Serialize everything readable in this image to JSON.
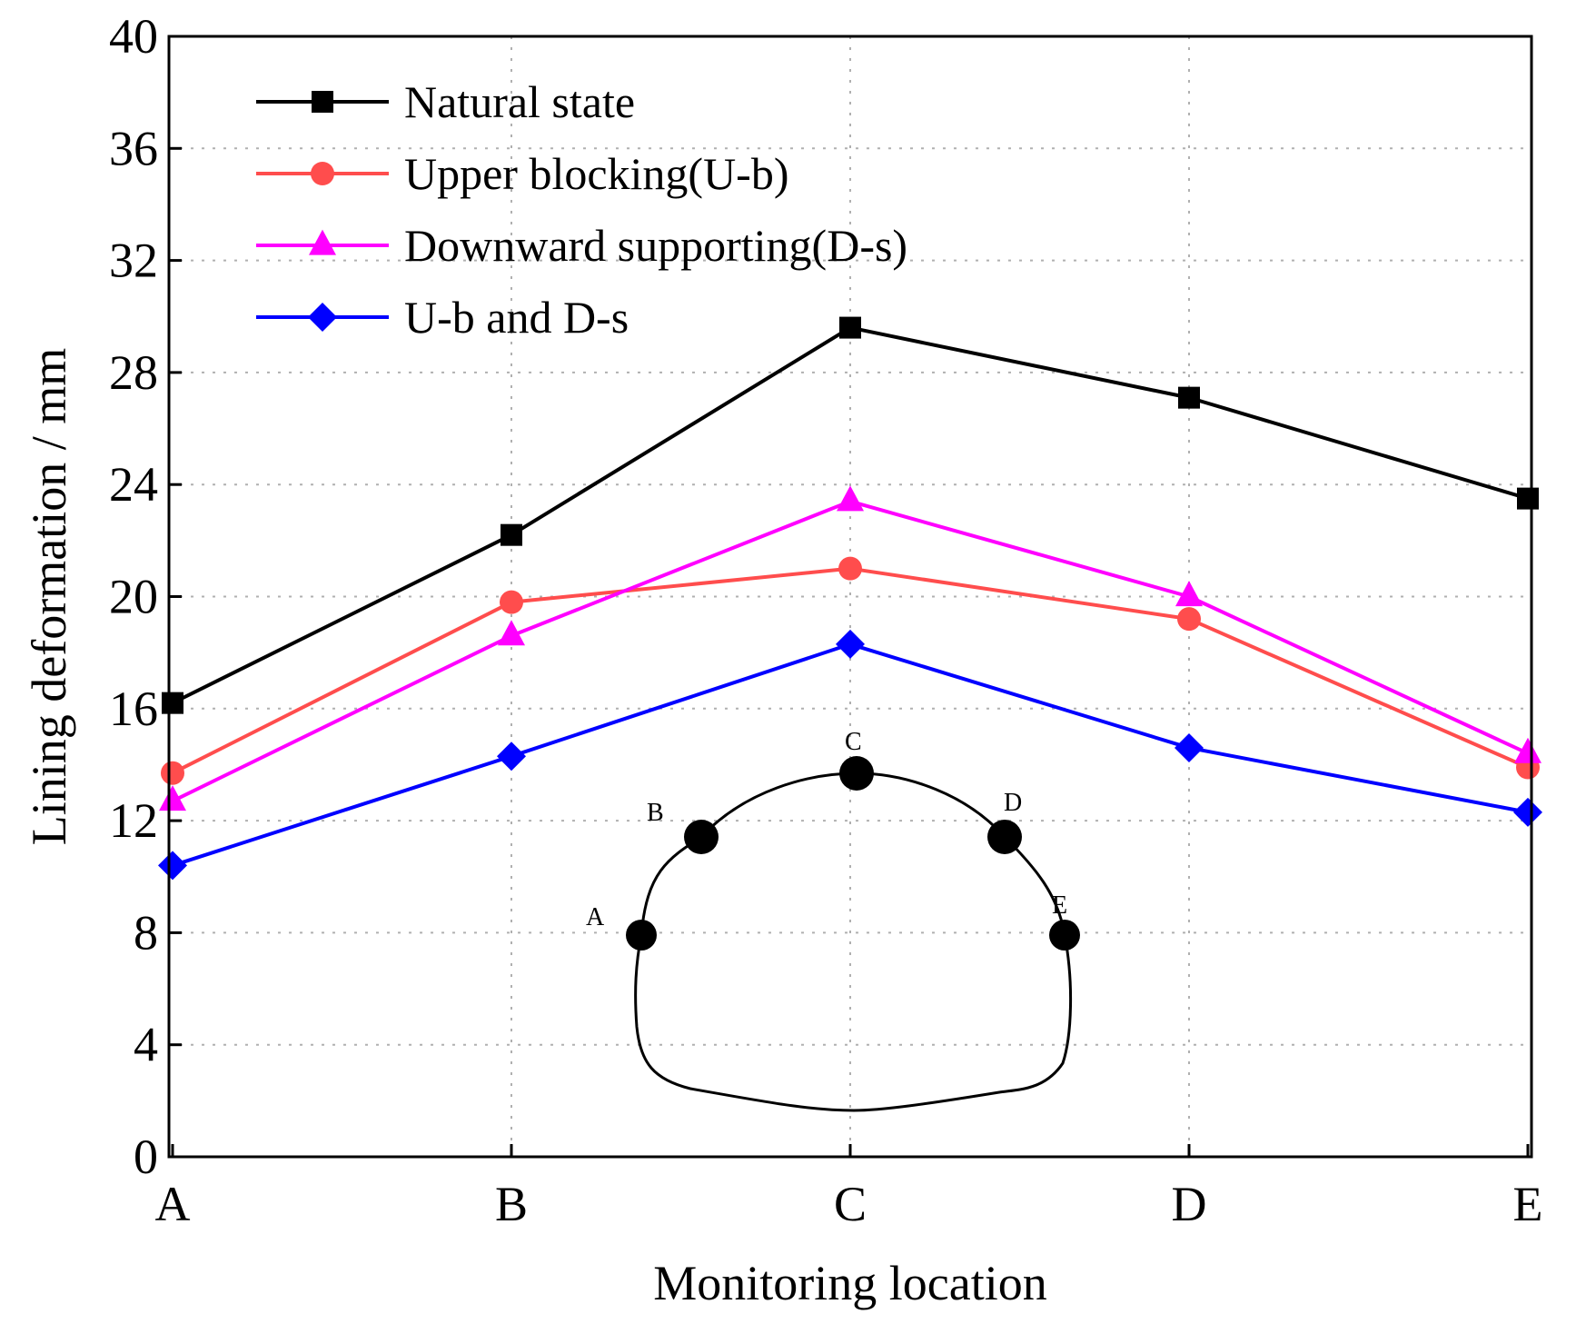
{
  "chart_data": {
    "type": "line",
    "title": "",
    "xlabel": "Monitoring location",
    "ylabel": "Lining deformation / mm",
    "categories": [
      "A",
      "B",
      "C",
      "D",
      "E"
    ],
    "ylim": [
      0,
      40
    ],
    "yticks": [
      0,
      4,
      8,
      12,
      16,
      20,
      24,
      28,
      32,
      36,
      40
    ],
    "grid": true,
    "legend_position": "top-left",
    "series": [
      {
        "name": "Natural state",
        "color": "#000000",
        "marker": "square",
        "values": [
          16.2,
          22.2,
          29.6,
          27.1,
          23.5
        ]
      },
      {
        "name": "Upper blocking(U-b)",
        "color": "#ff4d4d",
        "marker": "circle",
        "values": [
          13.7,
          19.8,
          21.0,
          19.2,
          13.9
        ]
      },
      {
        "name": "Downward supporting(D-s)",
        "color": "#ff00ff",
        "marker": "triangle",
        "values": [
          12.7,
          18.6,
          23.4,
          20.0,
          14.4
        ]
      },
      {
        "name": "U-b and D-s",
        "color": "#0000ff",
        "marker": "diamond",
        "values": [
          10.4,
          14.3,
          18.3,
          14.6,
          12.3
        ]
      }
    ],
    "inset": {
      "description_points": [
        "A",
        "B",
        "C",
        "D",
        "E"
      ]
    }
  }
}
